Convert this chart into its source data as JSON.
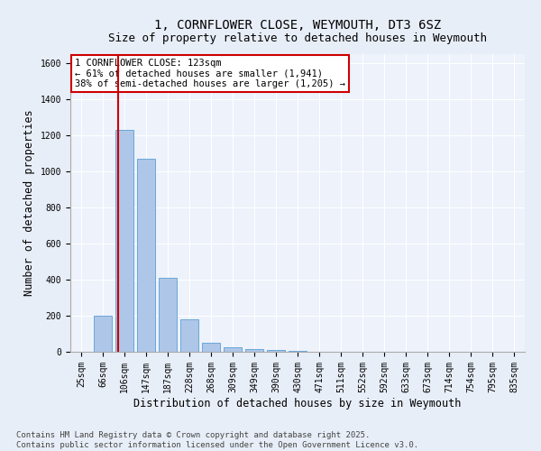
{
  "title": "1, CORNFLOWER CLOSE, WEYMOUTH, DT3 6SZ",
  "subtitle": "Size of property relative to detached houses in Weymouth",
  "xlabel": "Distribution of detached houses by size in Weymouth",
  "ylabel": "Number of detached properties",
  "categories": [
    "25sqm",
    "66sqm",
    "106sqm",
    "147sqm",
    "187sqm",
    "228sqm",
    "268sqm",
    "309sqm",
    "349sqm",
    "390sqm",
    "430sqm",
    "471sqm",
    "511sqm",
    "552sqm",
    "592sqm",
    "633sqm",
    "673sqm",
    "714sqm",
    "754sqm",
    "795sqm",
    "835sqm"
  ],
  "values": [
    0,
    200,
    1230,
    1070,
    410,
    180,
    50,
    25,
    15,
    10,
    5,
    0,
    0,
    0,
    0,
    0,
    0,
    0,
    0,
    0,
    0
  ],
  "bar_color": "#aec6e8",
  "bar_edge_color": "#5a9fd4",
  "ylim": [
    0,
    1650
  ],
  "yticks": [
    0,
    200,
    400,
    600,
    800,
    1000,
    1200,
    1400,
    1600
  ],
  "vline_x": 1.72,
  "vline_color": "#cc0000",
  "annotation_text": "1 CORNFLOWER CLOSE: 123sqm\n← 61% of detached houses are smaller (1,941)\n38% of semi-detached houses are larger (1,205) →",
  "annotation_box_color": "#ffffff",
  "annotation_box_edge": "#cc0000",
  "footer_line1": "Contains HM Land Registry data © Crown copyright and database right 2025.",
  "footer_line2": "Contains public sector information licensed under the Open Government Licence v3.0.",
  "bg_color": "#e8eef8",
  "plot_bg_color": "#edf2fb",
  "title_fontsize": 10,
  "xlabel_fontsize": 8.5,
  "ylabel_fontsize": 8.5,
  "tick_fontsize": 7,
  "footer_fontsize": 6.5
}
